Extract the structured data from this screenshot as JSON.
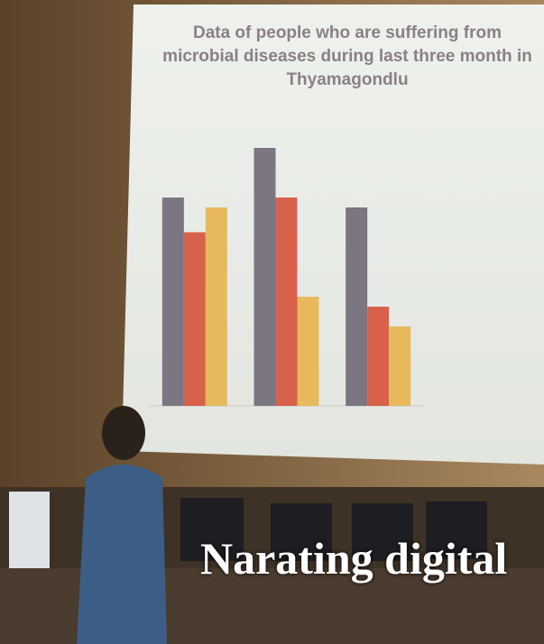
{
  "chart_data": {
    "type": "bar",
    "title": "Data of people who are suffering from microbial diseases during last three month in Thyamagondlu",
    "categories": [
      null,
      null,
      null
    ],
    "series": [
      {
        "color": "#7b7682",
        "values": [
          4.2,
          5.2,
          4.0
        ]
      },
      {
        "color": "#d8614b",
        "values": [
          3.5,
          4.2,
          2.0
        ]
      },
      {
        "color": "#e6b95c",
        "values": [
          4.0,
          2.2,
          1.6
        ]
      }
    ],
    "ylim": [
      0,
      6
    ]
  },
  "overlay": {
    "caption": "Narating digital"
  }
}
